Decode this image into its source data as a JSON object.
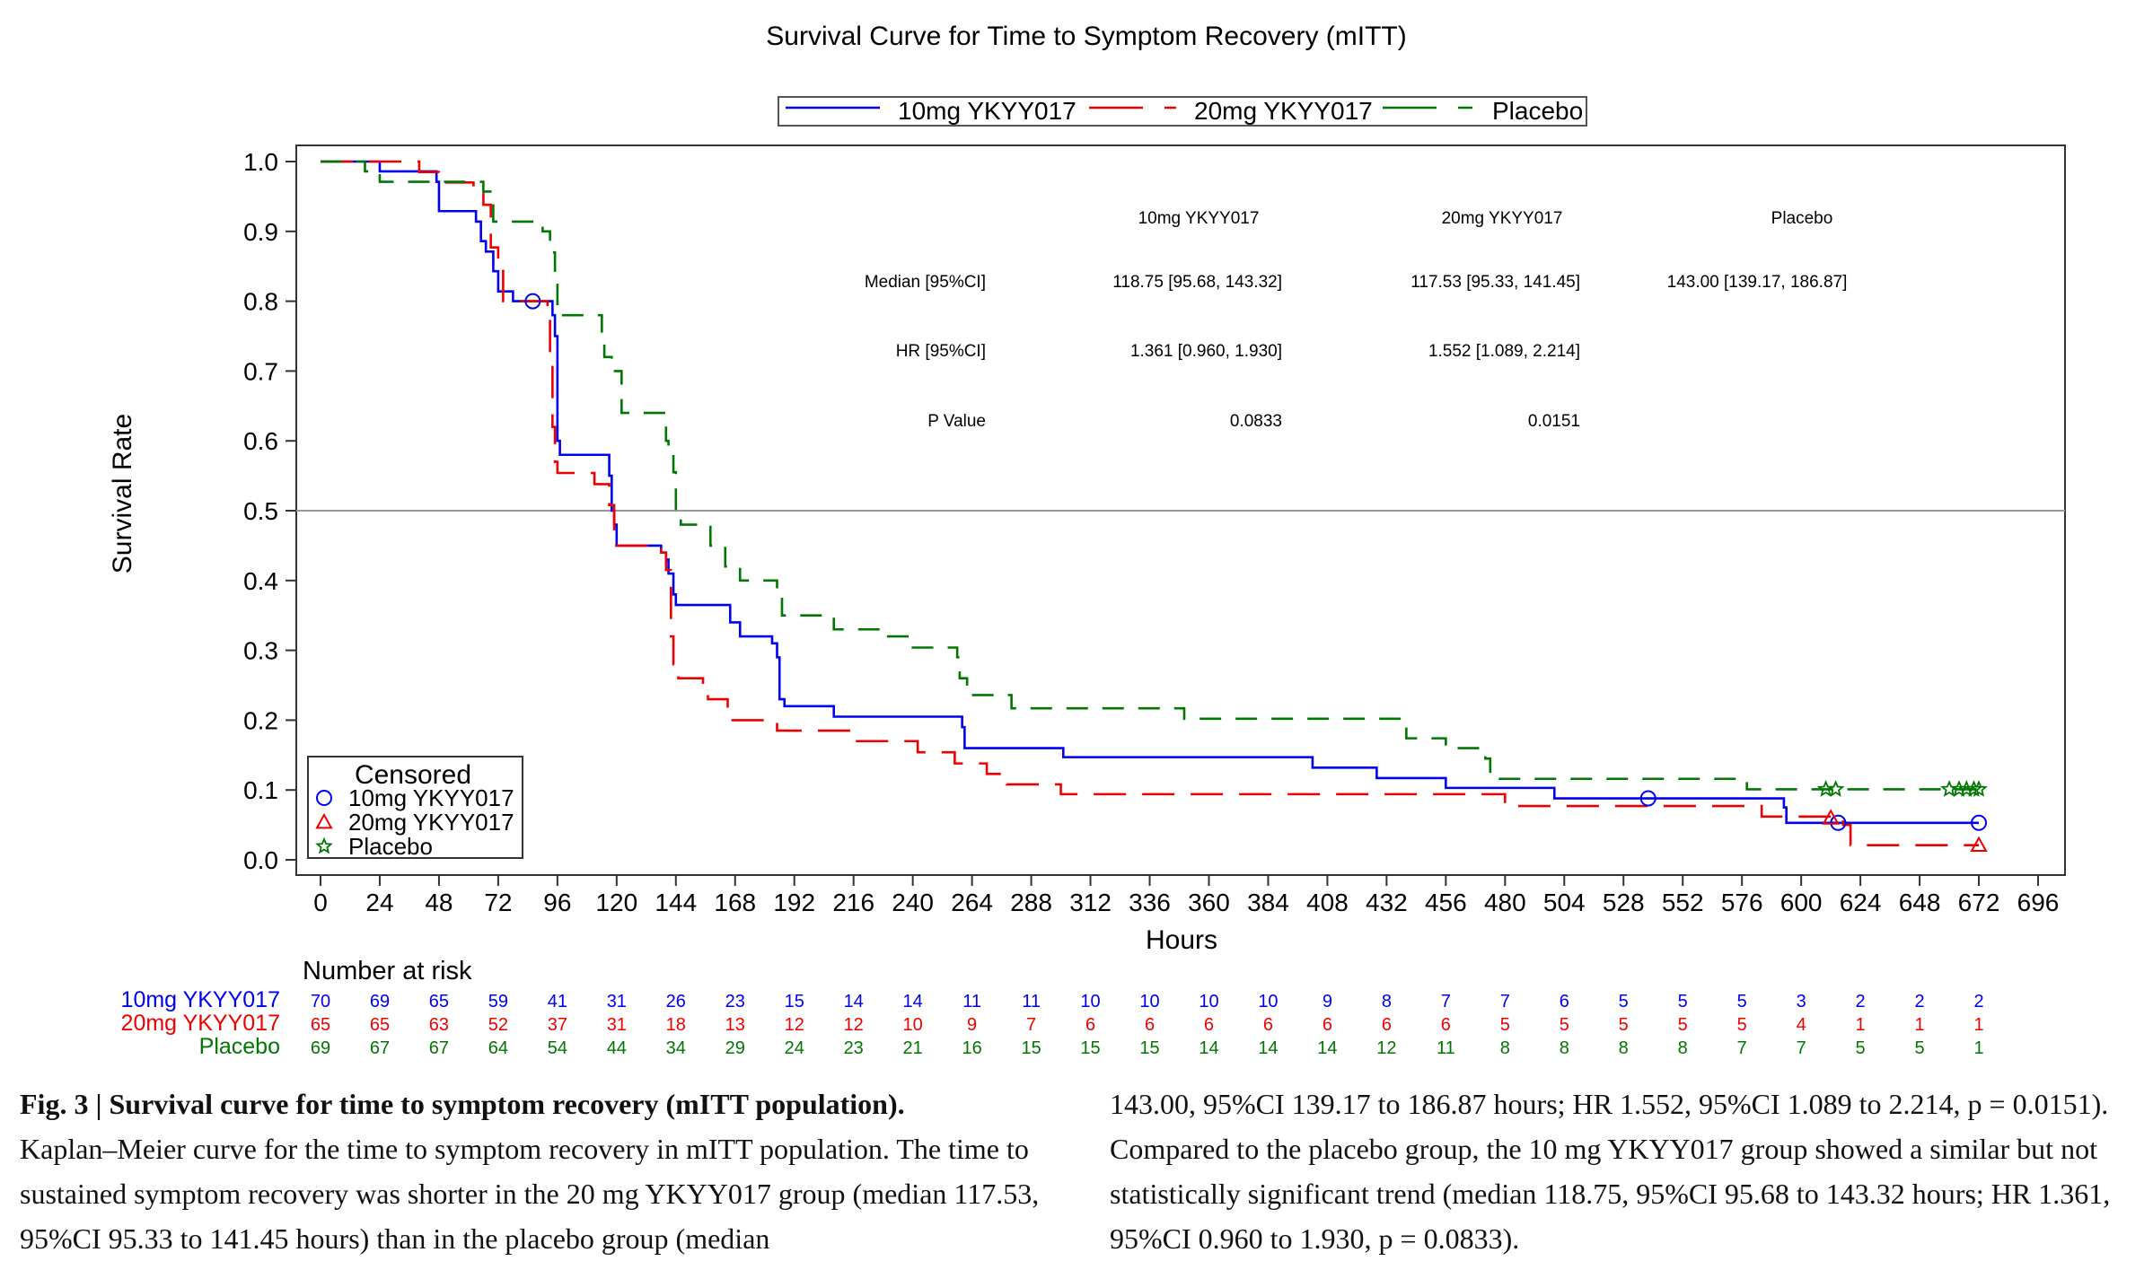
{
  "chart_data": {
    "type": "line",
    "title": "Survival Curve for Time to Symptom Recovery (mITT)",
    "xlabel": "Hours",
    "ylabel": "Survival Rate",
    "xlim": [
      0,
      696
    ],
    "ylim": [
      0.0,
      1.0
    ],
    "x_ticks": [
      "0",
      "24",
      "48",
      "72",
      "96",
      "120",
      "144",
      "168",
      "192",
      "216",
      "240",
      "264",
      "288",
      "312",
      "336",
      "360",
      "384",
      "408",
      "432",
      "456",
      "480",
      "504",
      "528",
      "552",
      "576",
      "600",
      "624",
      "648",
      "672",
      "696"
    ],
    "y_ticks": [
      "0.0",
      "0.1",
      "0.2",
      "0.3",
      "0.4",
      "0.5",
      "0.6",
      "0.7",
      "0.8",
      "0.9",
      "1.0"
    ],
    "reference_line_y": 0.5,
    "legend_position": "top-center",
    "series": [
      {
        "name": "10mg YKYY017",
        "color": "#0000ee",
        "dash": "solid",
        "steps": [
          [
            0,
            1.0
          ],
          [
            24,
            0.986
          ],
          [
            47,
            0.971
          ],
          [
            48,
            0.929
          ],
          [
            63,
            0.914
          ],
          [
            65,
            0.886
          ],
          [
            67,
            0.871
          ],
          [
            70,
            0.843
          ],
          [
            72,
            0.814
          ],
          [
            78,
            0.8
          ],
          [
            94,
            0.78
          ],
          [
            95,
            0.75
          ],
          [
            96,
            0.6
          ],
          [
            97,
            0.58
          ],
          [
            117,
            0.55
          ],
          [
            118,
            0.5
          ],
          [
            119,
            0.48
          ],
          [
            120,
            0.45
          ],
          [
            138,
            0.44
          ],
          [
            140,
            0.43
          ],
          [
            141,
            0.41
          ],
          [
            143,
            0.38
          ],
          [
            144,
            0.365
          ],
          [
            166,
            0.34
          ],
          [
            170,
            0.32
          ],
          [
            183,
            0.31
          ],
          [
            185,
            0.29
          ],
          [
            186,
            0.23
          ],
          [
            188,
            0.22
          ],
          [
            208,
            0.205
          ],
          [
            260,
            0.19
          ],
          [
            261,
            0.16
          ],
          [
            301,
            0.147
          ],
          [
            402,
            0.132
          ],
          [
            428,
            0.117
          ],
          [
            456,
            0.103
          ],
          [
            500,
            0.088
          ],
          [
            584,
            0.088
          ],
          [
            593,
            0.075
          ],
          [
            594,
            0.053
          ],
          [
            672,
            0.053
          ]
        ],
        "censored": [
          [
            86,
            0.8
          ],
          [
            538,
            0.088
          ],
          [
            615,
            0.053
          ],
          [
            672,
            0.053
          ]
        ]
      },
      {
        "name": "20mg YKYY017",
        "color": "#ee0000",
        "dash": "long-dash",
        "steps": [
          [
            0,
            1.0
          ],
          [
            40,
            0.985
          ],
          [
            48,
            0.97
          ],
          [
            62,
            0.954
          ],
          [
            66,
            0.938
          ],
          [
            69,
            0.877
          ],
          [
            72,
            0.846
          ],
          [
            74,
            0.8
          ],
          [
            92,
            0.78
          ],
          [
            93,
            0.72
          ],
          [
            94,
            0.62
          ],
          [
            95,
            0.57
          ],
          [
            96,
            0.554
          ],
          [
            111,
            0.538
          ],
          [
            117,
            0.508
          ],
          [
            119,
            0.45
          ],
          [
            138,
            0.44
          ],
          [
            140,
            0.415
          ],
          [
            142,
            0.32
          ],
          [
            143,
            0.28
          ],
          [
            145,
            0.26
          ],
          [
            155,
            0.245
          ],
          [
            157,
            0.23
          ],
          [
            165,
            0.2
          ],
          [
            185,
            0.185
          ],
          [
            216,
            0.17
          ],
          [
            242,
            0.154
          ],
          [
            257,
            0.138
          ],
          [
            270,
            0.123
          ],
          [
            278,
            0.108
          ],
          [
            288,
            0.108
          ],
          [
            300,
            0.094
          ],
          [
            476,
            0.094
          ],
          [
            480,
            0.077
          ],
          [
            584,
            0.062
          ],
          [
            600,
            0.062
          ],
          [
            602,
            0.062
          ],
          [
            617,
            0.05
          ],
          [
            620,
            0.021
          ],
          [
            672,
            0.021
          ]
        ],
        "censored": [
          [
            612,
            0.06
          ],
          [
            672,
            0.021
          ]
        ]
      },
      {
        "name": "Placebo",
        "color": "#007700",
        "dash": "dash",
        "steps": [
          [
            0,
            1.0
          ],
          [
            18,
            0.986
          ],
          [
            24,
            0.971
          ],
          [
            66,
            0.957
          ],
          [
            70,
            0.914
          ],
          [
            90,
            0.9
          ],
          [
            93,
            0.87
          ],
          [
            95,
            0.84
          ],
          [
            96,
            0.78
          ],
          [
            110,
            0.78
          ],
          [
            114,
            0.75
          ],
          [
            115,
            0.72
          ],
          [
            118,
            0.7
          ],
          [
            122,
            0.64
          ],
          [
            130,
            0.64
          ],
          [
            140,
            0.6
          ],
          [
            141,
            0.58
          ],
          [
            143,
            0.555
          ],
          [
            144,
            0.5
          ],
          [
            146,
            0.48
          ],
          [
            158,
            0.45
          ],
          [
            164,
            0.42
          ],
          [
            170,
            0.4
          ],
          [
            185,
            0.38
          ],
          [
            187,
            0.35
          ],
          [
            208,
            0.33
          ],
          [
            230,
            0.32
          ],
          [
            240,
            0.304
          ],
          [
            258,
            0.29
          ],
          [
            259,
            0.26
          ],
          [
            262,
            0.236
          ],
          [
            280,
            0.217
          ],
          [
            300,
            0.217
          ],
          [
            350,
            0.202
          ],
          [
            440,
            0.174
          ],
          [
            456,
            0.16
          ],
          [
            472,
            0.145
          ],
          [
            474,
            0.116
          ],
          [
            576,
            0.116
          ],
          [
            578,
            0.101
          ],
          [
            672,
            0.101
          ]
        ],
        "censored": [
          [
            610,
            0.101
          ],
          [
            614,
            0.101
          ],
          [
            660,
            0.101
          ],
          [
            664,
            0.101
          ],
          [
            667,
            0.101
          ],
          [
            670,
            0.101
          ],
          [
            672,
            0.101
          ]
        ]
      }
    ],
    "stats_table": {
      "columns": [
        "10mg YKYY017",
        "20mg YKYY017",
        "Placebo"
      ],
      "rows": [
        {
          "label": "Median [95%CI]",
          "values": [
            "118.75 [95.68, 143.32]",
            "117.53 [95.33, 141.45]",
            "143.00 [139.17, 186.87]"
          ]
        },
        {
          "label": "HR [95%CI]",
          "values": [
            "1.361 [0.960, 1.930]",
            "1.552 [1.089, 2.214]",
            ""
          ]
        },
        {
          "label": "P Value",
          "values": [
            "0.0833",
            "0.0151",
            ""
          ]
        }
      ]
    },
    "censored_legend": {
      "title": "Censored",
      "items": [
        {
          "label": "10mg YKYY017",
          "symbol": "circle",
          "color": "#0000ee"
        },
        {
          "label": "20mg YKYY017",
          "symbol": "triangle",
          "color": "#ee0000"
        },
        {
          "label": "Placebo",
          "symbol": "star",
          "color": "#007700"
        }
      ]
    },
    "risk_table": {
      "title": "Number at risk",
      "times": [
        0,
        24,
        48,
        72,
        96,
        120,
        144,
        168,
        192,
        216,
        240,
        264,
        288,
        312,
        336,
        360,
        384,
        408,
        432,
        456,
        480,
        504,
        528,
        552,
        576,
        600,
        624,
        648,
        672
      ],
      "rows": [
        {
          "name": "10mg YKYY017",
          "color": "#0000ee",
          "values": [
            70,
            69,
            65,
            59,
            41,
            31,
            26,
            23,
            15,
            14,
            14,
            11,
            11,
            10,
            10,
            10,
            10,
            9,
            8,
            7,
            7,
            6,
            5,
            5,
            5,
            3,
            2,
            2,
            2
          ]
        },
        {
          "name": "20mg YKYY017",
          "color": "#ee0000",
          "values": [
            65,
            65,
            63,
            52,
            37,
            31,
            18,
            13,
            12,
            12,
            10,
            9,
            7,
            6,
            6,
            6,
            6,
            6,
            6,
            6,
            5,
            5,
            5,
            5,
            5,
            4,
            1,
            1,
            1
          ]
        },
        {
          "name": "Placebo",
          "color": "#007700",
          "values": [
            69,
            67,
            67,
            64,
            54,
            44,
            34,
            29,
            24,
            23,
            21,
            16,
            15,
            15,
            15,
            14,
            14,
            14,
            12,
            11,
            8,
            8,
            8,
            8,
            7,
            7,
            5,
            5,
            1
          ]
        }
      ]
    }
  },
  "caption": {
    "heading": "Fig. 3 | Survival curve for time to symptom recovery (mITT population).",
    "left_text": "Kaplan–Meier curve for the time to symptom recovery in mITT population. The time to sustained symptom recovery was shorter in the 20 mg YKYY017 group (median 117.53, 95%CI 95.33 to 141.45 hours) than in the placebo group (median",
    "right_text": "143.00, 95%CI 139.17 to 186.87 hours; HR 1.552, 95%CI 1.089 to 2.214, p = 0.0151). Compared to the placebo group, the 10 mg YKYY017 group showed a similar but not statistically significant trend (median 118.75, 95%CI 95.68 to 143.32 hours; HR 1.361, 95%CI 0.960 to 1.930, p = 0.0833)."
  }
}
